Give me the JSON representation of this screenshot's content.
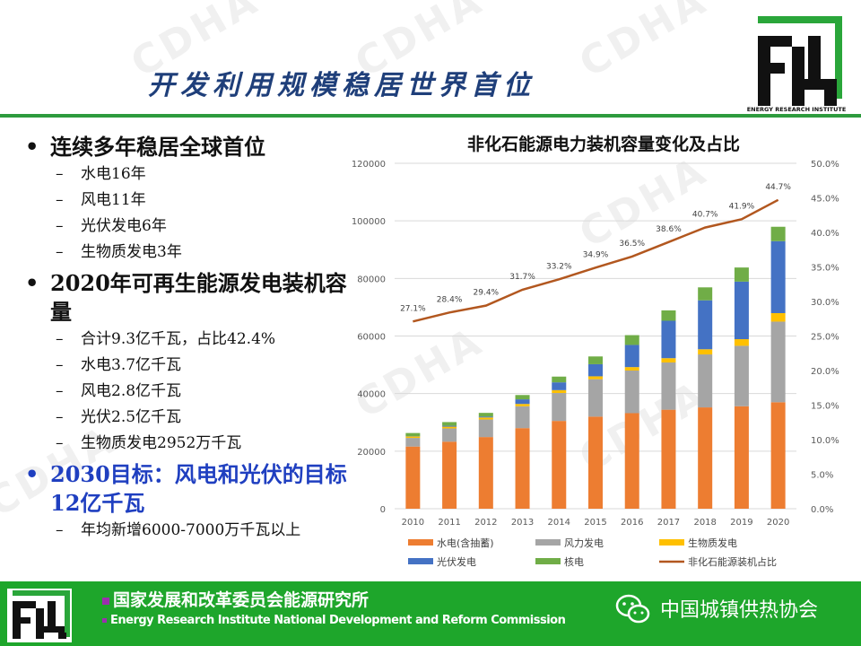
{
  "watermark": "CDHA",
  "title": "开发利用规模稳居世界首位",
  "logo": {
    "caption": "ENERGY RESEARCH INSTITUTE"
  },
  "bullets": [
    {
      "text": "连续多年稳居全球首位",
      "highlight": false,
      "subs": [
        "水电16年",
        "风电11年",
        "光伏发电6年",
        "生物质发电3年"
      ]
    },
    {
      "text": "2020年可再生能源发电装机容量",
      "highlight": false,
      "subs": [
        "合计9.3亿千瓦，占比42.4%",
        "水电3.7亿千瓦",
        "风电2.8亿千瓦",
        "光伏2.5亿千瓦",
        "生物质发电2952万千瓦"
      ]
    },
    {
      "text": "2030目标：风电和光伏的目标12亿千瓦",
      "highlight": true,
      "subs": [
        "年均新增6000-7000万千瓦以上"
      ]
    }
  ],
  "chart_data": {
    "type": "bar",
    "stacked": true,
    "title": "非化石能源电力装机容量变化及占比",
    "categories": [
      "2010",
      "2011",
      "2012",
      "2013",
      "2014",
      "2015",
      "2016",
      "2017",
      "2018",
      "2019",
      "2020"
    ],
    "series": [
      {
        "name": "水电(含抽蓄)",
        "color": "#ed7d31",
        "values": [
          21600,
          23300,
          24900,
          28000,
          30500,
          32000,
          33200,
          34400,
          35200,
          35600,
          37000
        ]
      },
      {
        "name": "风力发电",
        "color": "#a5a5a5",
        "values": [
          3000,
          4600,
          6100,
          7600,
          9700,
          13000,
          14800,
          16400,
          18400,
          21000,
          28000
        ]
      },
      {
        "name": "生物质发电",
        "color": "#ffc000",
        "values": [
          500,
          600,
          700,
          800,
          1000,
          1000,
          1200,
          1500,
          1800,
          2300,
          2952
        ]
      },
      {
        "name": "光伏发电",
        "color": "#4472c4",
        "values": [
          100,
          300,
          300,
          1600,
          2700,
          4200,
          7700,
          13000,
          17000,
          20000,
          25000
        ]
      },
      {
        "name": "核电",
        "color": "#70ad47",
        "values": [
          1100,
          1300,
          1300,
          1500,
          2000,
          2700,
          3400,
          3600,
          4500,
          4900,
          5000
        ]
      }
    ],
    "line": {
      "name": "非化石能源装机占比",
      "color": "#b2571f",
      "values": [
        27.1,
        28.4,
        29.4,
        31.7,
        33.2,
        34.9,
        36.5,
        38.6,
        40.7,
        41.9,
        44.7
      ],
      "labels": [
        "27.1%",
        "28.4%",
        "29.4%",
        "31.7%",
        "33.2%",
        "34.9%",
        "36.5%",
        "38.6%",
        "40.7%",
        "41.9%",
        "44.7%"
      ]
    },
    "ylim": [
      0,
      120000
    ],
    "y_ticks": [
      "0",
      "20000",
      "40000",
      "60000",
      "80000",
      "100000",
      "120000"
    ],
    "y2lim": [
      0,
      50
    ],
    "y2_ticks": [
      "0.0%",
      "5.0%",
      "10.0%",
      "15.0%",
      "20.0%",
      "25.0%",
      "30.0%",
      "35.0%",
      "40.0%",
      "45.0%",
      "50.0%"
    ],
    "grid": true,
    "legend_position": "bottom"
  },
  "footer": {
    "org_cn": "国家发展和改革委员会能源研究所",
    "org_en": "Energy Research Institute National Development and Reform Commission",
    "wechat_name": "中国城镇供热协会"
  }
}
